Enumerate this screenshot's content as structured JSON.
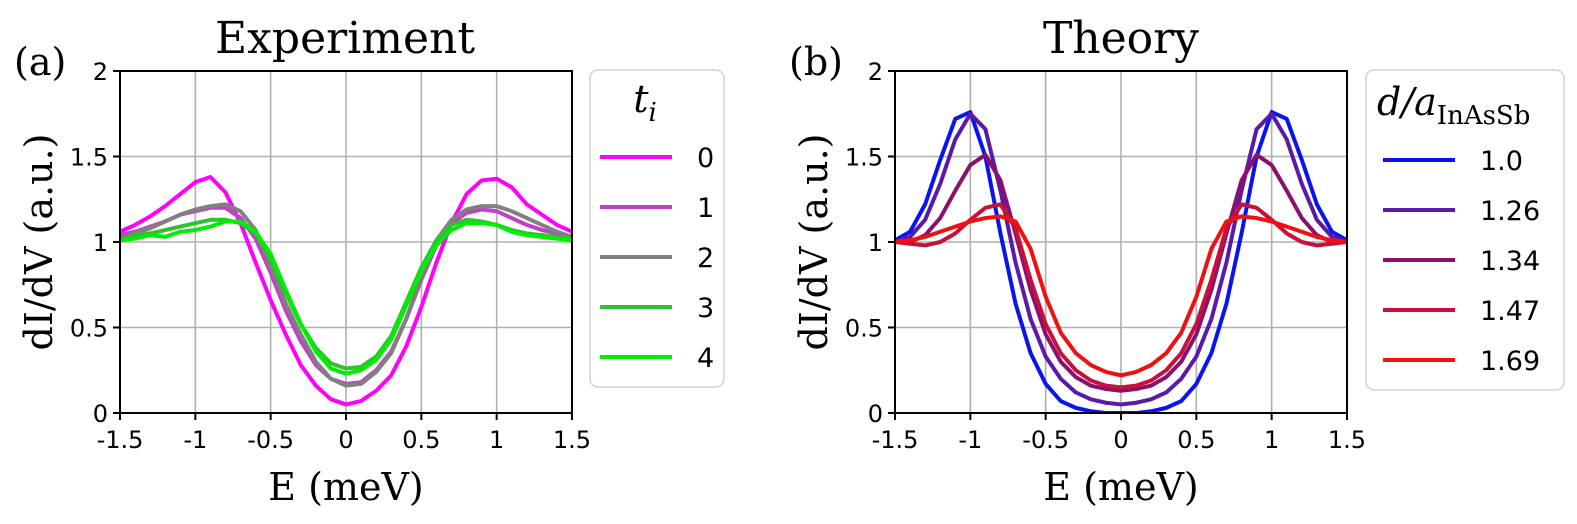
{
  "chart_data": [
    {
      "type": "line",
      "panel_label": "(a)",
      "title": "Experiment",
      "xlabel": "E (meV)",
      "ylabel": "dI/dV (a.u.)",
      "xlim": [
        -1.5,
        1.5
      ],
      "ylim": [
        0,
        2
      ],
      "xticks": [
        -1.5,
        -1,
        -0.5,
        0,
        0.5,
        1,
        1.5
      ],
      "xtick_labels": [
        "-1.5",
        "-1",
        "-0.5",
        "0",
        "0.5",
        "1",
        "1.5"
      ],
      "yticks": [
        0,
        0.5,
        1,
        1.5,
        2
      ],
      "ytick_labels": [
        "0",
        "0.5",
        "1",
        "1.5",
        "2"
      ],
      "grid": true,
      "legend": {
        "title_main": "t",
        "title_sub": "i",
        "placement": "outside-right"
      },
      "series": [
        {
          "name": "0",
          "color": "#ff00ff",
          "x": [
            -1.5,
            -1.4,
            -1.3,
            -1.2,
            -1.1,
            -1.0,
            -0.9,
            -0.8,
            -0.7,
            -0.6,
            -0.5,
            -0.4,
            -0.3,
            -0.2,
            -0.1,
            0.0,
            0.1,
            0.2,
            0.3,
            0.4,
            0.5,
            0.6,
            0.7,
            0.8,
            0.9,
            1.0,
            1.1,
            1.2,
            1.3,
            1.4,
            1.5
          ],
          "y": [
            1.06,
            1.1,
            1.15,
            1.21,
            1.28,
            1.35,
            1.38,
            1.29,
            1.11,
            0.88,
            0.66,
            0.46,
            0.28,
            0.16,
            0.08,
            0.05,
            0.07,
            0.13,
            0.22,
            0.39,
            0.62,
            0.88,
            1.11,
            1.28,
            1.36,
            1.37,
            1.32,
            1.22,
            1.16,
            1.1,
            1.06
          ]
        },
        {
          "name": "1",
          "color": "#c040c8",
          "x": [
            -1.5,
            -1.4,
            -1.3,
            -1.2,
            -1.1,
            -1.0,
            -0.9,
            -0.8,
            -0.7,
            -0.6,
            -0.5,
            -0.4,
            -0.3,
            -0.2,
            -0.1,
            0.0,
            0.1,
            0.2,
            0.3,
            0.4,
            0.5,
            0.6,
            0.7,
            0.8,
            0.9,
            1.0,
            1.1,
            1.2,
            1.3,
            1.4,
            1.5
          ],
          "y": [
            1.04,
            1.06,
            1.09,
            1.12,
            1.16,
            1.18,
            1.2,
            1.2,
            1.14,
            1.02,
            0.82,
            0.6,
            0.42,
            0.28,
            0.2,
            0.17,
            0.18,
            0.25,
            0.36,
            0.55,
            0.78,
            0.98,
            1.11,
            1.17,
            1.19,
            1.18,
            1.14,
            1.1,
            1.07,
            1.05,
            1.03
          ]
        },
        {
          "name": "2",
          "color": "#808080",
          "x": [
            -1.5,
            -1.4,
            -1.3,
            -1.2,
            -1.1,
            -1.0,
            -0.9,
            -0.8,
            -0.7,
            -0.6,
            -0.5,
            -0.4,
            -0.3,
            -0.2,
            -0.1,
            0.0,
            0.1,
            0.2,
            0.3,
            0.4,
            0.5,
            0.6,
            0.7,
            0.8,
            0.9,
            1.0,
            1.1,
            1.2,
            1.3,
            1.4,
            1.5
          ],
          "y": [
            1.02,
            1.05,
            1.08,
            1.12,
            1.16,
            1.19,
            1.21,
            1.22,
            1.18,
            1.07,
            0.86,
            0.64,
            0.46,
            0.3,
            0.2,
            0.16,
            0.17,
            0.24,
            0.35,
            0.55,
            0.8,
            1.01,
            1.13,
            1.19,
            1.21,
            1.21,
            1.18,
            1.14,
            1.1,
            1.06,
            1.03
          ]
        },
        {
          "name": "3",
          "color": "#30c030",
          "x": [
            -1.5,
            -1.4,
            -1.3,
            -1.2,
            -1.1,
            -1.0,
            -0.9,
            -0.8,
            -0.7,
            -0.6,
            -0.5,
            -0.4,
            -0.3,
            -0.2,
            -0.1,
            0.0,
            0.1,
            0.2,
            0.3,
            0.4,
            0.5,
            0.6,
            0.7,
            0.8,
            0.9,
            1.0,
            1.1,
            1.2,
            1.3,
            1.4,
            1.5
          ],
          "y": [
            1.01,
            1.04,
            1.05,
            1.07,
            1.09,
            1.11,
            1.13,
            1.13,
            1.11,
            1.05,
            0.9,
            0.7,
            0.52,
            0.38,
            0.29,
            0.26,
            0.27,
            0.33,
            0.45,
            0.65,
            0.85,
            1.01,
            1.1,
            1.13,
            1.12,
            1.1,
            1.07,
            1.05,
            1.04,
            1.03,
            1.02
          ]
        },
        {
          "name": "4",
          "color": "#00ee00",
          "x": [
            -1.5,
            -1.4,
            -1.3,
            -1.2,
            -1.1,
            -1.0,
            -0.9,
            -0.8,
            -0.7,
            -0.6,
            -0.5,
            -0.4,
            -0.3,
            -0.2,
            -0.1,
            0.0,
            0.1,
            0.2,
            0.3,
            0.4,
            0.5,
            0.6,
            0.7,
            0.8,
            0.9,
            1.0,
            1.1,
            1.2,
            1.3,
            1.4,
            1.5
          ],
          "y": [
            1.01,
            1.02,
            1.04,
            1.03,
            1.06,
            1.07,
            1.09,
            1.12,
            1.12,
            1.06,
            0.93,
            0.72,
            0.52,
            0.36,
            0.26,
            0.23,
            0.25,
            0.31,
            0.43,
            0.63,
            0.83,
            0.98,
            1.07,
            1.11,
            1.11,
            1.1,
            1.06,
            1.04,
            1.03,
            1.02,
            1.01
          ]
        }
      ]
    },
    {
      "type": "line",
      "panel_label": "(b)",
      "title": "Theory",
      "xlabel": "E (meV)",
      "ylabel": "dI/dV (a.u.)",
      "xlim": [
        -1.5,
        1.5
      ],
      "ylim": [
        0,
        2
      ],
      "xticks": [
        -1.5,
        -1,
        -0.5,
        0,
        0.5,
        1,
        1.5
      ],
      "xtick_labels": [
        "-1.5",
        "-1",
        "-0.5",
        "0",
        "0.5",
        "1",
        "1.5"
      ],
      "yticks": [
        0,
        0.5,
        1,
        1.5,
        2
      ],
      "ytick_labels": [
        "0",
        "0.5",
        "1",
        "1.5",
        "2"
      ],
      "grid": true,
      "legend": {
        "title_main": "d/a",
        "title_sub": "InAsSb",
        "placement": "outside-right"
      },
      "series": [
        {
          "name": "1.0",
          "color": "#0a14f0",
          "x": [
            -1.5,
            -1.4,
            -1.3,
            -1.2,
            -1.1,
            -1.0,
            -0.9,
            -0.8,
            -0.7,
            -0.6,
            -0.5,
            -0.4,
            -0.3,
            -0.2,
            -0.1,
            0.0,
            0.1,
            0.2,
            0.3,
            0.4,
            0.5,
            0.6,
            0.7,
            0.8,
            0.9,
            1.0,
            1.1,
            1.2,
            1.3,
            1.4,
            1.5
          ],
          "y": [
            1.01,
            1.06,
            1.22,
            1.48,
            1.72,
            1.76,
            1.5,
            1.05,
            0.64,
            0.35,
            0.17,
            0.07,
            0.03,
            0.01,
            0.0,
            0.0,
            0.0,
            0.01,
            0.03,
            0.07,
            0.17,
            0.35,
            0.64,
            1.05,
            1.5,
            1.76,
            1.72,
            1.48,
            1.22,
            1.06,
            1.01
          ]
        },
        {
          "name": "1.26",
          "color": "#5a1aa8",
          "x": [
            -1.5,
            -1.4,
            -1.3,
            -1.2,
            -1.1,
            -1.0,
            -0.9,
            -0.8,
            -0.7,
            -0.6,
            -0.5,
            -0.4,
            -0.3,
            -0.2,
            -0.1,
            0.0,
            0.1,
            0.2,
            0.3,
            0.4,
            0.5,
            0.6,
            0.7,
            0.8,
            0.9,
            1.0,
            1.1,
            1.2,
            1.3,
            1.4,
            1.5
          ],
          "y": [
            1.0,
            1.03,
            1.13,
            1.34,
            1.6,
            1.75,
            1.66,
            1.3,
            0.88,
            0.55,
            0.33,
            0.2,
            0.12,
            0.08,
            0.06,
            0.05,
            0.06,
            0.08,
            0.12,
            0.2,
            0.33,
            0.55,
            0.88,
            1.3,
            1.66,
            1.75,
            1.6,
            1.34,
            1.13,
            1.03,
            1.0
          ]
        },
        {
          "name": "1.34",
          "color": "#8a1070",
          "x": [
            -1.5,
            -1.4,
            -1.3,
            -1.2,
            -1.1,
            -1.0,
            -0.9,
            -0.8,
            -0.7,
            -0.6,
            -0.5,
            -0.4,
            -0.3,
            -0.2,
            -0.1,
            0.0,
            0.1,
            0.2,
            0.3,
            0.4,
            0.5,
            0.6,
            0.7,
            0.8,
            0.9,
            1.0,
            1.1,
            1.2,
            1.3,
            1.4,
            1.5
          ],
          "y": [
            1.0,
            1.0,
            1.04,
            1.14,
            1.3,
            1.45,
            1.51,
            1.36,
            1.05,
            0.72,
            0.46,
            0.3,
            0.21,
            0.16,
            0.14,
            0.13,
            0.14,
            0.16,
            0.21,
            0.3,
            0.46,
            0.72,
            1.05,
            1.36,
            1.51,
            1.45,
            1.3,
            1.14,
            1.04,
            1.0,
            1.0
          ]
        },
        {
          "name": "1.47",
          "color": "#c8103a",
          "x": [
            -1.5,
            -1.4,
            -1.3,
            -1.2,
            -1.1,
            -1.0,
            -0.9,
            -0.8,
            -0.7,
            -0.6,
            -0.5,
            -0.4,
            -0.3,
            -0.2,
            -0.1,
            0.0,
            0.1,
            0.2,
            0.3,
            0.4,
            0.5,
            0.6,
            0.7,
            0.8,
            0.9,
            1.0,
            1.1,
            1.2,
            1.3,
            1.4,
            1.5
          ],
          "y": [
            1.0,
            0.99,
            0.98,
            1.0,
            1.05,
            1.13,
            1.2,
            1.22,
            1.08,
            0.78,
            0.52,
            0.35,
            0.25,
            0.19,
            0.16,
            0.15,
            0.16,
            0.19,
            0.25,
            0.35,
            0.52,
            0.78,
            1.08,
            1.22,
            1.2,
            1.13,
            1.05,
            1.0,
            0.98,
            0.99,
            1.0
          ]
        },
        {
          "name": "1.69",
          "color": "#f01010",
          "x": [
            -1.5,
            -1.4,
            -1.3,
            -1.2,
            -1.1,
            -1.0,
            -0.9,
            -0.8,
            -0.7,
            -0.6,
            -0.5,
            -0.4,
            -0.3,
            -0.2,
            -0.1,
            0.0,
            0.1,
            0.2,
            0.3,
            0.4,
            0.5,
            0.6,
            0.7,
            0.8,
            0.9,
            1.0,
            1.1,
            1.2,
            1.3,
            1.4,
            1.5
          ],
          "y": [
            1.0,
            1.01,
            1.03,
            1.06,
            1.09,
            1.12,
            1.14,
            1.15,
            1.12,
            0.96,
            0.68,
            0.47,
            0.35,
            0.28,
            0.24,
            0.22,
            0.24,
            0.28,
            0.35,
            0.47,
            0.68,
            0.96,
            1.12,
            1.15,
            1.14,
            1.12,
            1.09,
            1.06,
            1.03,
            1.01,
            1.0
          ]
        }
      ]
    }
  ]
}
